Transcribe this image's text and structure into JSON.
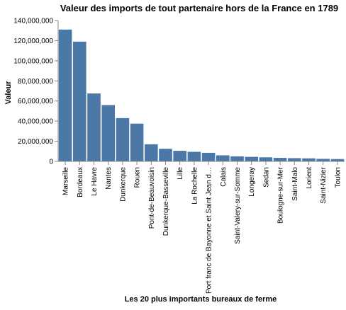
{
  "chart_data": {
    "type": "bar",
    "title": "Valeur des imports de tout partenaire hors de la France en 1789",
    "xlabel": "Les 20 plus importants bureaux de ferme",
    "ylabel": "Valeur",
    "ylim": [
      0,
      140000000
    ],
    "yticks": [
      "0",
      "20,000,000",
      "40,000,000",
      "60,000,000",
      "80,000,000",
      "100,000,000",
      "120,000,000",
      "140,000,000"
    ],
    "categories": [
      "Marseille",
      "Bordeaux",
      "Le Havre",
      "Nantes",
      "Dunkerque",
      "Rouen",
      "Pont-de-Beauvoisin",
      "Dunkerque-Basseville",
      "Lille",
      "La Rochelle",
      "Port franc de Bayonne et Saint Jean d…",
      "Calais",
      "Saint-Valery-sur-Somme",
      "Longeray",
      "Sedan",
      "Boulogne-sur-Mer",
      "Saint-Malo",
      "Lorient",
      "Saint-Nizier",
      "Toulon"
    ],
    "values": [
      131000000,
      119000000,
      67500000,
      56000000,
      43000000,
      37500000,
      17000000,
      12500000,
      10500000,
      9500000,
      8500000,
      6000000,
      5000000,
      4500000,
      4000000,
      3500000,
      3200000,
      3000000,
      2500000,
      2300000
    ],
    "bar_color": "#4c78a8",
    "grid": false,
    "legend": "none"
  }
}
